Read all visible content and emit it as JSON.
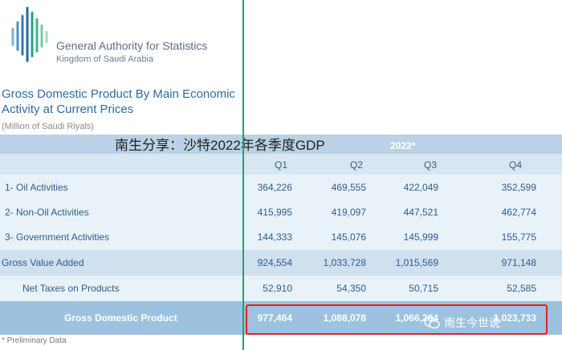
{
  "header": {
    "org_name": "General Authority for Statistics",
    "org_sub": "Kingdom of Saudi Arabia"
  },
  "report": {
    "title": "Gross Domestic Product By Main Economic Activity at Current Prices",
    "unit": "(Million of Saudi Riyals)"
  },
  "overlay_text": "南生分享：沙特2022年各季度GDP",
  "table": {
    "year": "2022*",
    "quarters": [
      "Q1",
      "Q2",
      "Q3",
      "Q4"
    ],
    "rows": [
      {
        "label": "1-  Oil Activities",
        "values": [
          "364,226",
          "469,555",
          "422,049",
          "352,599"
        ]
      },
      {
        "label": "2-  Non-Oil Activities",
        "values": [
          "415,995",
          "419,097",
          "447,521",
          "462,774"
        ]
      },
      {
        "label": "3-  Government Activities",
        "values": [
          "144,333",
          "145,076",
          "145,999",
          "155,775"
        ]
      }
    ],
    "gva": {
      "label": "Gross Value Added",
      "values": [
        "924,554",
        "1,033,728",
        "1,015,569",
        "971,148"
      ]
    },
    "taxes": {
      "label": "Net Taxes on Products",
      "values": [
        "52,910",
        "54,350",
        "50,715",
        "52,585"
      ]
    },
    "gdp": {
      "label": "Gross Domestic Product",
      "values": [
        "977,464",
        "1,088,078",
        "1,066,284",
        "1,023,733"
      ]
    }
  },
  "footnote": "*  Preliminary Data",
  "watermark": "南生今世说",
  "colors": {
    "accent": "#2c6aa3",
    "highlight": "#e0261a",
    "guide_line": "#1fa36a"
  }
}
